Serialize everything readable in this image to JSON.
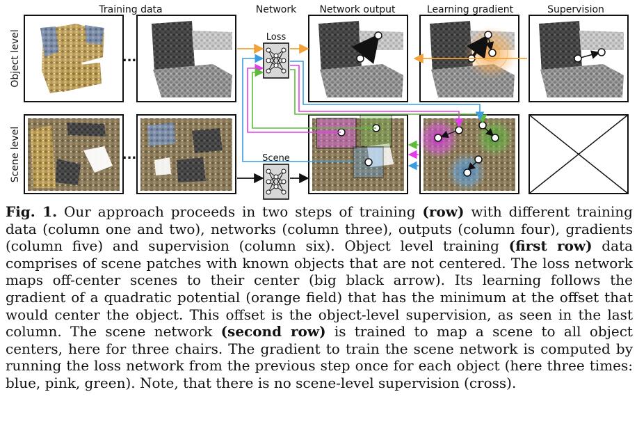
{
  "figure": {
    "col_headers": {
      "training_data": "Training data",
      "network": "Network",
      "network_output": "Network output",
      "learning_gradient": "Learning gradient",
      "supervision": "Supervision"
    },
    "row_labels": {
      "object": "Object level",
      "scene": "Scene level"
    },
    "net_labels": {
      "loss": "Loss",
      "scene": "Scene"
    },
    "ellipsis": "...",
    "colors": {
      "orange": "#f2a23a",
      "pink": "#e23de8",
      "green": "#5dbb3a",
      "blue": "#3a9be0"
    }
  },
  "caption": {
    "fig_label": "Fig. 1.",
    "s1": " Our approach proceeds in two steps of training ",
    "b1": "(row)",
    "s2": " with different training data (column one and two), networks (column three), outputs (column four), gradients (column five) and supervision (column six). Object level training ",
    "b2": "(first row)",
    "s3": " data comprises of scene patches with known objects that are not centered. The loss network maps off-center scenes to their center (big black arrow). Its learning follows the gradient of a quadratic potential (orange field) that has the minimum at the offset that would center the object. This offset is the object-level supervision, as seen in the last column. The scene network ",
    "b3": "(second row)",
    "s4": " is trained to map a scene to all object centers, here for three chairs. The gradient to train the scene network is computed by running the loss network from the previous step once for each object (here three times: blue, pink, green). Note, that there is no scene-level supervision (cross)."
  }
}
